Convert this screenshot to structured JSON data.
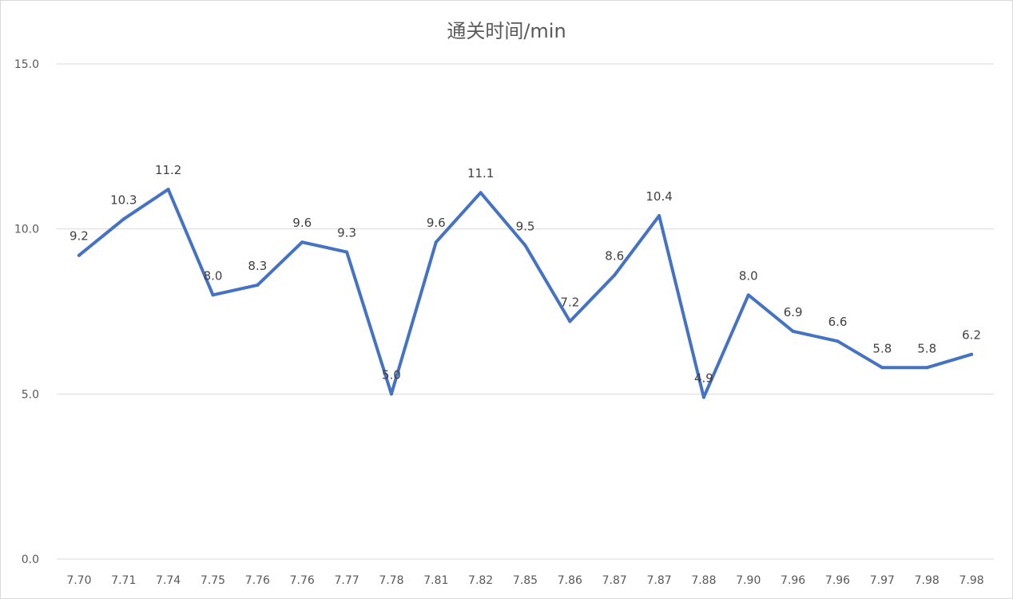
{
  "chart_data": {
    "type": "line",
    "title": "通关时间/min",
    "xlabel": "",
    "ylabel": "",
    "categories": [
      "7.70",
      "7.71",
      "7.74",
      "7.75",
      "7.76",
      "7.76",
      "7.77",
      "7.78",
      "7.81",
      "7.82",
      "7.85",
      "7.86",
      "7.87",
      "7.87",
      "7.88",
      "7.90",
      "7.96",
      "7.96",
      "7.97",
      "7.98",
      "7.98"
    ],
    "series": [
      {
        "values": [
          9.2,
          10.3,
          11.2,
          8.0,
          8.3,
          9.6,
          9.3,
          5.0,
          9.6,
          11.1,
          9.5,
          7.2,
          8.6,
          10.4,
          4.9,
          8.0,
          6.9,
          6.6,
          5.8,
          5.8,
          6.2
        ],
        "labels": [
          "9.2",
          "10.3",
          "11.2",
          "8.0",
          "8.3",
          "9.6",
          "9.3",
          "5.0",
          "9.6",
          "11.1",
          "9.5",
          "7.2",
          "8.6",
          "10.4",
          "4.9",
          "8.0",
          "6.9",
          "6.6",
          "5.8",
          "5.8",
          "6.2"
        ],
        "color": "#4472c4"
      }
    ],
    "ylim": [
      0,
      15
    ],
    "yticks": [
      "0.0",
      "5.0",
      "10.0",
      "15.0"
    ],
    "ytick_values": [
      0,
      5,
      10,
      15
    ],
    "grid": true,
    "legend": "none"
  }
}
